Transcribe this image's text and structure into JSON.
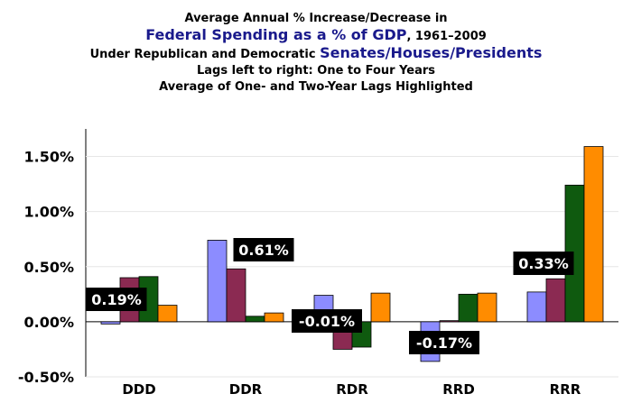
{
  "title": {
    "line1": "Average Annual % Increase/Decrease in",
    "line2_main": "Federal Spending as a % of GDP",
    "line2_rest": ", 1961–2009",
    "line3_pre": "Under Republican and Democratic ",
    "line3_main": "Senates/Houses/Presidents",
    "line4": "Lags left to right: One to Four Years",
    "line5": "Average of One- and Two-Year Lags Highlighted"
  },
  "chart_data": {
    "type": "bar",
    "categories": [
      "DDD",
      "DDR",
      "RDR",
      "RRD",
      "RRR"
    ],
    "series": [
      {
        "values": [
          -0.02,
          0.74,
          0.24,
          -0.36,
          0.27
        ],
        "color": "#8c8cff"
      },
      {
        "values": [
          0.4,
          0.48,
          -0.25,
          0.01,
          0.39
        ],
        "color": "#8b2a52"
      },
      {
        "values": [
          0.41,
          0.05,
          -0.23,
          0.25,
          1.24
        ],
        "color": "#0f5a0f"
      },
      {
        "values": [
          0.15,
          0.08,
          0.26,
          0.26,
          1.59
        ],
        "color": "#ff8c00"
      }
    ],
    "highlight_labels": [
      "0.19%",
      "0.61%",
      "-0.01%",
      "-0.17%",
      "0.33%"
    ],
    "yticks": [
      "1.50%",
      "1.00%",
      "0.50%",
      "0.00%",
      "-0.50%"
    ],
    "ytick_values": [
      1.5,
      1.0,
      0.5,
      0.0,
      -0.5
    ],
    "ylim": [
      -0.5,
      1.75
    ],
    "grid": true
  }
}
